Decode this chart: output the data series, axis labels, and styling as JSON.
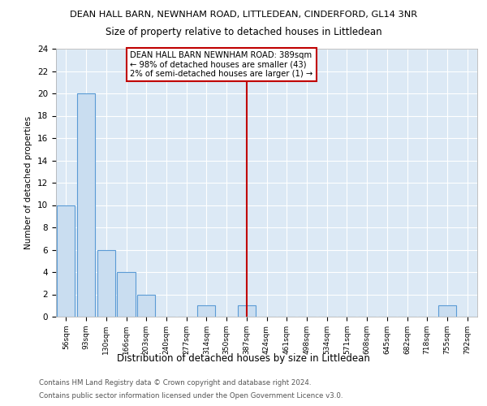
{
  "title1": "DEAN HALL BARN, NEWNHAM ROAD, LITTLEDEAN, CINDERFORD, GL14 3NR",
  "title2": "Size of property relative to detached houses in Littledean",
  "xlabel": "Distribution of detached houses by size in Littledean",
  "ylabel": "Number of detached properties",
  "categories": [
    "56sqm",
    "93sqm",
    "130sqm",
    "166sqm",
    "203sqm",
    "240sqm",
    "277sqm",
    "314sqm",
    "350sqm",
    "387sqm",
    "424sqm",
    "461sqm",
    "498sqm",
    "534sqm",
    "571sqm",
    "608sqm",
    "645sqm",
    "682sqm",
    "718sqm",
    "755sqm",
    "792sqm"
  ],
  "values": [
    10,
    20,
    6,
    4,
    2,
    0,
    0,
    1,
    0,
    1,
    0,
    0,
    0,
    0,
    0,
    0,
    0,
    0,
    0,
    1,
    0
  ],
  "bar_color": "#c9ddf0",
  "bar_edge_color": "#5b9bd5",
  "vline_position": 9.5,
  "vline_color": "#c00000",
  "annotation_text": "DEAN HALL BARN NEWNHAM ROAD: 389sqm\n← 98% of detached houses are smaller (43)\n2% of semi-detached houses are larger (1) →",
  "annotation_box_color": "white",
  "annotation_box_edge_color": "#c00000",
  "ylim": [
    0,
    24
  ],
  "yticks": [
    0,
    2,
    4,
    6,
    8,
    10,
    12,
    14,
    16,
    18,
    20,
    22,
    24
  ],
  "footer1": "Contains HM Land Registry data © Crown copyright and database right 2024.",
  "footer2": "Contains public sector information licensed under the Open Government Licence v3.0.",
  "plot_bg_color": "#dce9f5",
  "fig_bg_color": "#ffffff"
}
